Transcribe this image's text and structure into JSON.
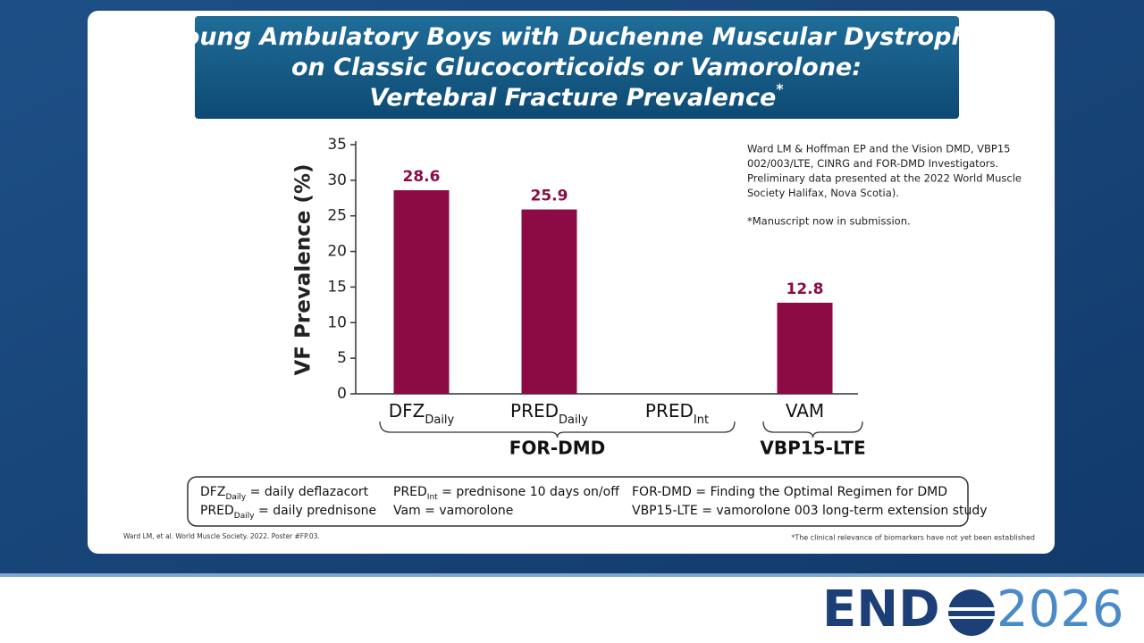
{
  "chart_data": {
    "type": "bar",
    "title": [
      "Young Ambulatory Boys with Duchenne Muscular Dystrophy",
      "on Classic Glucocorticoids or Vamorolone:",
      "Vertebral Fracture Prevalence"
    ],
    "title_mark": "*",
    "y_label": "VF Prevalence (%)",
    "categories": [
      "DFZ",
      "PRED",
      "PRED",
      "VAM"
    ],
    "category_subscripts": [
      "Daily",
      "Daily",
      "Int",
      null
    ],
    "values": [
      28.6,
      25.9,
      null,
      12.8
    ],
    "color": "#8c0b45",
    "ylim": [
      0,
      35
    ],
    "yticks": [
      0,
      5,
      10,
      15,
      20,
      25,
      30,
      35
    ],
    "groups": [
      {
        "label": "FOR-DMD",
        "count": 3
      },
      {
        "label": "VBP15-LTE",
        "count": 1
      }
    ],
    "notes": [
      "Ward LM & Hoffman EP and the Vision DMD, VBP15",
      "002/003/LTE, CINRG and FOR-DMD Investigators.",
      "Preliminary data presented at the 2022 World Muscle",
      "Society Halifax, Nova Scotia).",
      "*Manuscript now in submission."
    ],
    "abbreviations": [
      [
        {
          "term": "DFZ",
          "sub": "Daily",
          "definition": " = daily deflazacort"
        },
        {
          "term": "PRED",
          "sub": "Daily",
          "definition": " = daily prednisone"
        }
      ],
      [
        {
          "term": "PRED",
          "sub": "Int",
          "definition": " = prednisone 10 days on/off"
        },
        {
          "term": "Vam",
          "definition": " = vamorolone"
        }
      ],
      [
        {
          "term": "FOR-DMD",
          "definition": " = Finding the Optimal Regimen for DMD"
        },
        {
          "term": "VBP15-LTE",
          "definition": " = vamorolone 003 long-term extension study"
        }
      ]
    ],
    "source": "Ward LM, et al. World Muscle Society. 2022. Poster #FP.03.",
    "footnote": "*The clinical relevance of biomarkers have not yet been established"
  },
  "logo": {
    "left": "END",
    "right": "2026"
  }
}
